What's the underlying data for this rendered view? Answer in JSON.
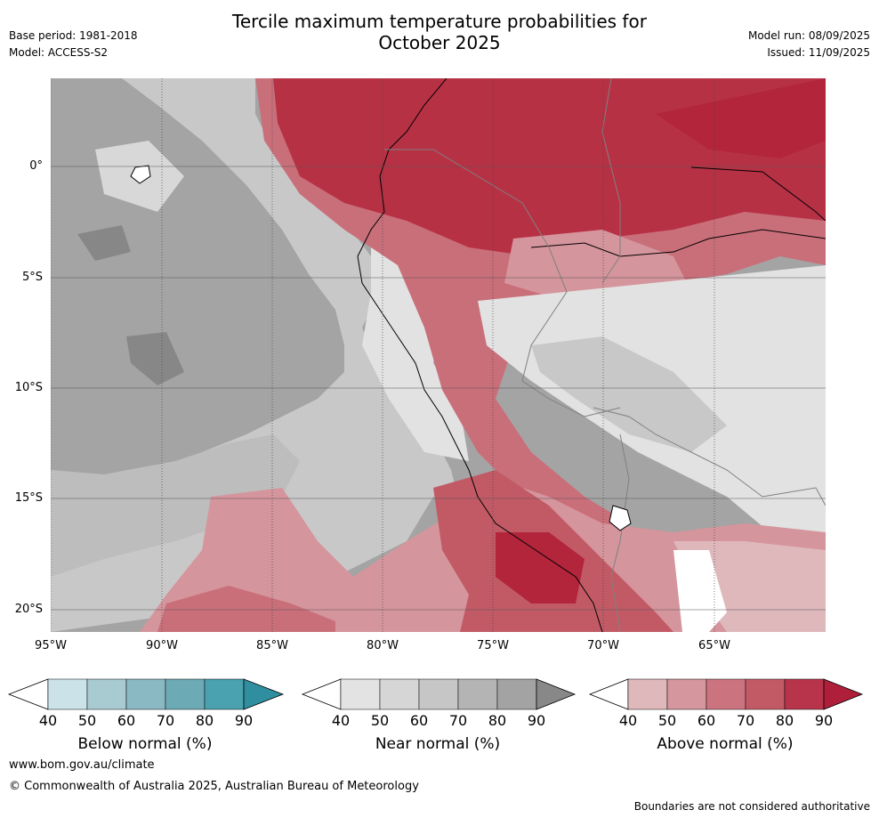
{
  "header": {
    "title_line1": "Tercile maximum temperature probabilities for",
    "title_line2": "October 2025",
    "base_period": "Base period: 1981-2018",
    "model": "Model: ACCESS-S2",
    "model_run": "Model run: 08/09/2025",
    "issued": "Issued: 11/09/2025"
  },
  "map": {
    "lat_labels": [
      "0°",
      "5°S",
      "10°S",
      "15°S",
      "20°S"
    ],
    "lon_labels": [
      "95°W",
      "90°W",
      "85°W",
      "80°W",
      "75°W",
      "70°W",
      "65°W"
    ],
    "category_colors": {
      "near_normal": [
        "#a4a4a4",
        "#c8c8c8",
        "#e2e2e2"
      ],
      "above_normal": [
        "#dfb8bc",
        "#d5959c",
        "#c96f7a",
        "#c25a66",
        "#b73145",
        "#b2253b"
      ]
    }
  },
  "colorbars": [
    {
      "label": "Below normal (%)",
      "ticks": [
        "40",
        "50",
        "60",
        "70",
        "80",
        "90"
      ],
      "colors": [
        "#ffffff",
        "#cbe3e8",
        "#a8cbd1",
        "#8bb9c3",
        "#6caab6",
        "#4aa1af",
        "#2f8fa0"
      ]
    },
    {
      "label": "Near normal (%)",
      "ticks": [
        "40",
        "50",
        "60",
        "70",
        "80",
        "90"
      ],
      "colors": [
        "#ffffff",
        "#e3e3e3",
        "#d6d6d6",
        "#c6c6c6",
        "#b4b4b4",
        "#a3a3a3",
        "#888888"
      ]
    },
    {
      "label": "Above normal (%)",
      "ticks": [
        "40",
        "50",
        "60",
        "70",
        "80",
        "90"
      ],
      "colors": [
        "#ffffff",
        "#dfb8bc",
        "#d6969d",
        "#cb7480",
        "#c25a66",
        "#b8344a",
        "#b01f3a"
      ]
    }
  ],
  "footer": {
    "url": "www.bom.gov.au/climate",
    "copyright": "© Commonwealth of Australia 2025, Australian Bureau of Meteorology",
    "disclaimer": "Boundaries are not considered authoritative"
  }
}
